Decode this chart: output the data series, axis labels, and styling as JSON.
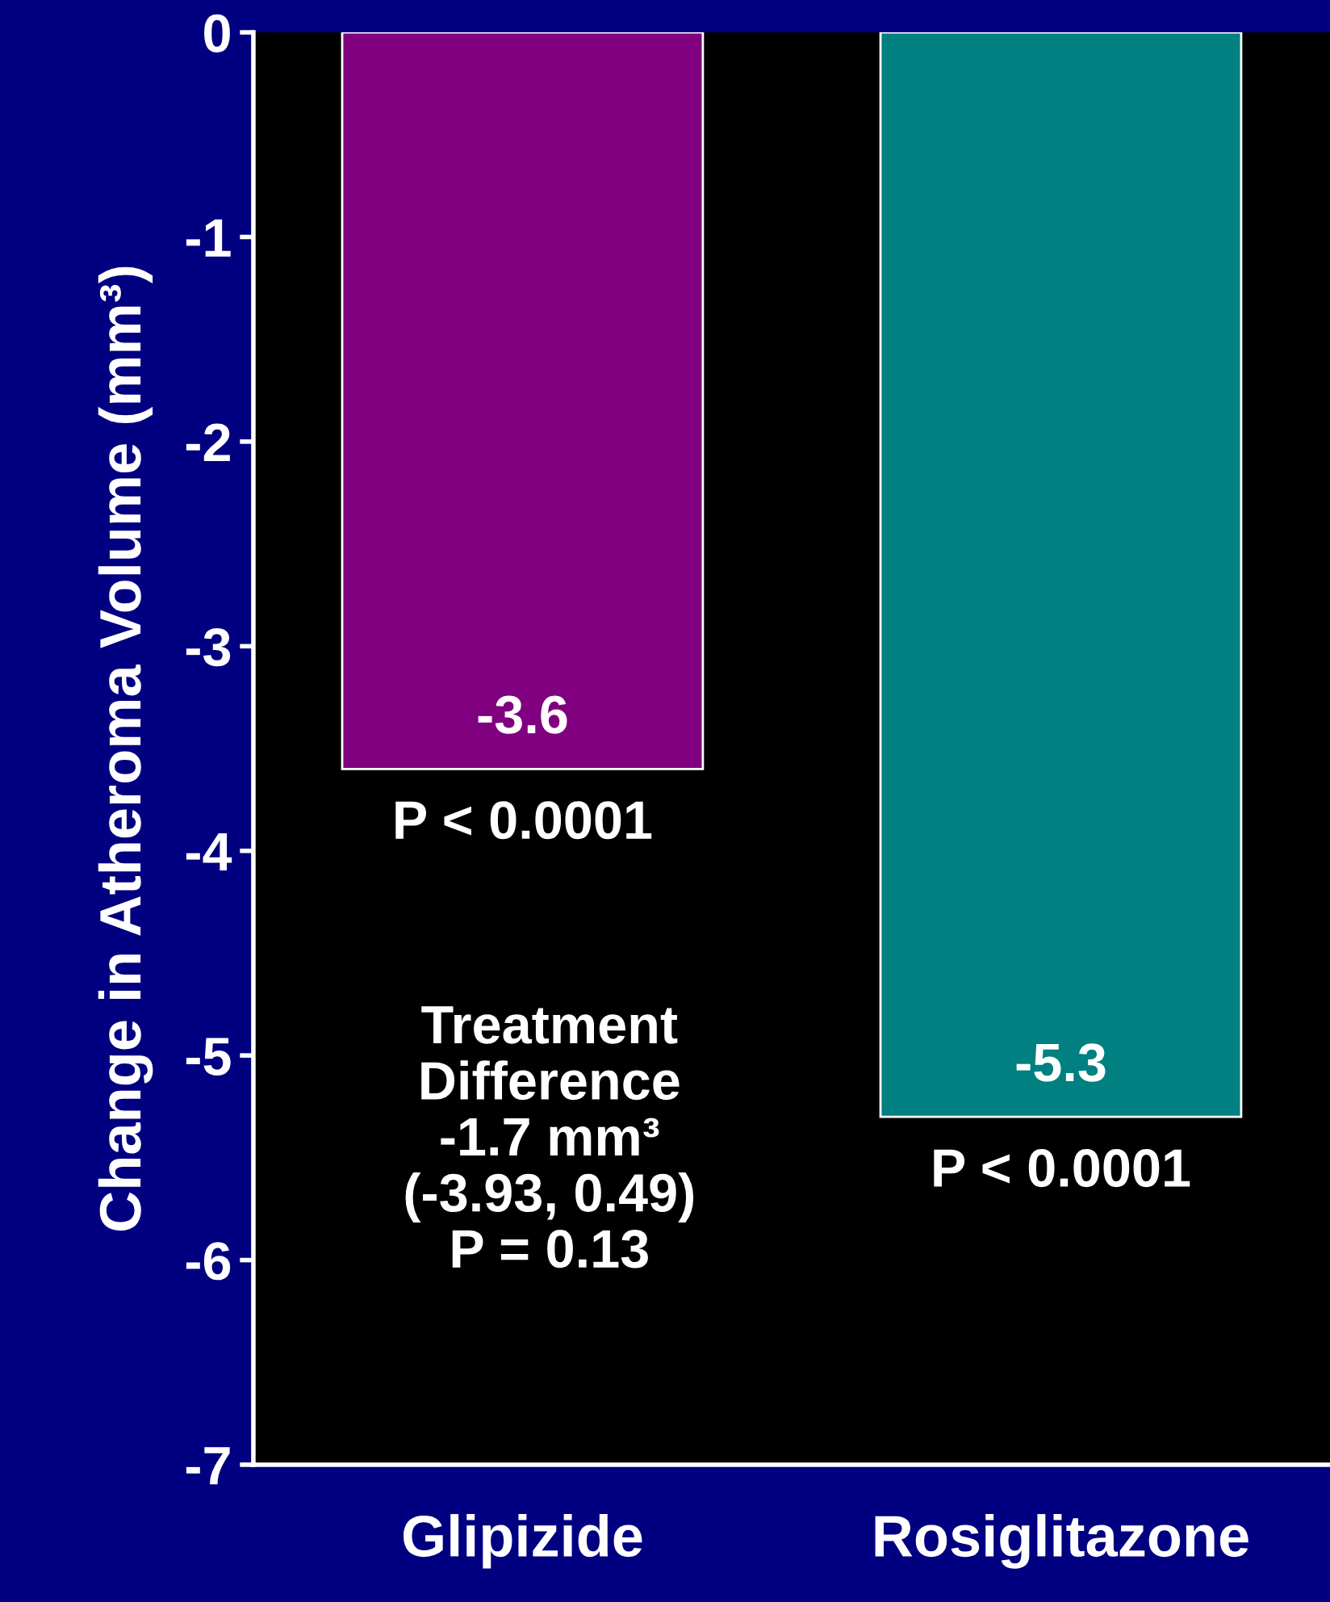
{
  "chart_data": {
    "type": "bar",
    "ylabel": "Change in Atheroma Volume (mm³)",
    "categories": [
      "Glipizide",
      "Rosiglitazone"
    ],
    "values": [
      -3.6,
      -5.3
    ],
    "colors": [
      "#800080",
      "#008080"
    ],
    "ylim": [
      -7,
      0
    ],
    "yticks": [
      {
        "value": 0,
        "label": "0"
      },
      {
        "value": -1,
        "label": "-1"
      },
      {
        "value": -2,
        "label": "-2"
      },
      {
        "value": -3,
        "label": "-3"
      },
      {
        "value": -4,
        "label": "-4"
      },
      {
        "value": -5,
        "label": "-5"
      },
      {
        "value": -6,
        "label": "-6"
      },
      {
        "value": -7,
        "label": "-7"
      }
    ],
    "data_labels": true,
    "grid": false,
    "legend": false,
    "annotations": [
      {
        "text": "P < 0.0001",
        "x": "Glipizide",
        "y": -3.6
      },
      {
        "text": "P < 0.0001",
        "x": "Rosiglitazone",
        "y": -5.3
      },
      "Treatment\nDifference\n-1.7 mm³\n(-3.93, 0.49)\nP = 0.13"
    ]
  }
}
